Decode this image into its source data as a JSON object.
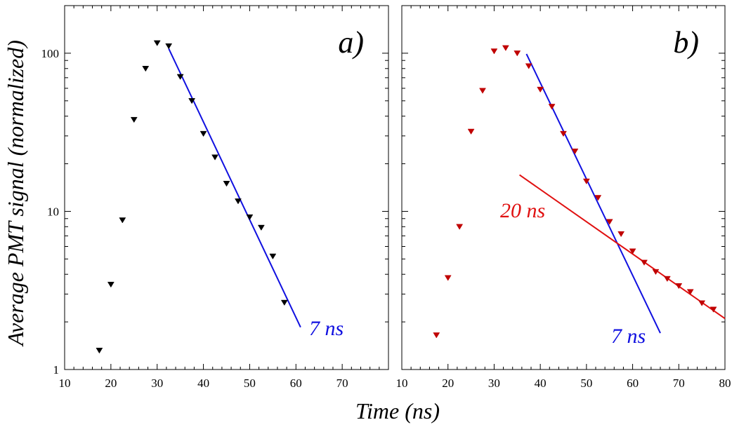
{
  "figure": {
    "ylabel": "Average PMT signal (normalized)",
    "xlabel": "Time (ns)"
  },
  "colors": {
    "black": "#000000",
    "blue": "#1010e0",
    "red": "#e01010",
    "darkred": "#c00000"
  },
  "chart_data": [
    {
      "type": "scatter",
      "panel_label": "a)",
      "xlim": [
        10,
        80
      ],
      "ylim": [
        1,
        200
      ],
      "yscale": "log",
      "x_ticks": [
        "10",
        "20",
        "30",
        "40",
        "50",
        "60",
        "70"
      ],
      "y_ticks": [
        "1",
        "10",
        "100"
      ],
      "series": [
        {
          "marker": "triangle-down",
          "color": "#000000",
          "x": [
            17.5,
            20,
            22.5,
            25,
            27.5,
            30,
            32.5,
            35,
            37.5,
            40,
            42.5,
            45,
            47.5,
            50,
            52.5,
            55,
            57.5
          ],
          "y": [
            1.32,
            3.45,
            8.8,
            38,
            80,
            116,
            111,
            71,
            50,
            31,
            22,
            15,
            11.6,
            9.2,
            7.9,
            5.2,
            2.65
          ]
        }
      ],
      "fits": [
        {
          "label": "7 ns",
          "color": "#1010e0",
          "x": [
            32.5,
            61
          ],
          "y": [
            107,
            1.85
          ]
        }
      ]
    },
    {
      "type": "scatter",
      "panel_label": "b)",
      "xlim": [
        10,
        80
      ],
      "ylim": [
        1,
        200
      ],
      "yscale": "log",
      "x_ticks": [
        "10",
        "20",
        "30",
        "40",
        "50",
        "60",
        "70",
        "80"
      ],
      "y_ticks": [
        "1",
        "10",
        "100"
      ],
      "series": [
        {
          "marker": "triangle-down",
          "color": "#c00000",
          "x": [
            17.5,
            20,
            22.5,
            25,
            27.5,
            30,
            32.5,
            35,
            37.5,
            40,
            42.5,
            45,
            47.5,
            50,
            52.5,
            55,
            57.5,
            60,
            62.5,
            65,
            67.5,
            70,
            72.5,
            75,
            77.5
          ],
          "y": [
            1.65,
            3.8,
            8.0,
            32,
            58,
            103,
            108,
            100,
            83,
            59,
            46,
            31,
            24,
            15.5,
            12.2,
            8.6,
            7.2,
            5.6,
            4.75,
            4.15,
            3.75,
            3.38,
            3.1,
            2.63,
            2.4
          ]
        }
      ],
      "fits": [
        {
          "label": "7 ns",
          "color": "#1010e0",
          "x": [
            37,
            66
          ],
          "y": [
            99,
            1.7
          ]
        },
        {
          "label": "20 ns",
          "color": "#e01010",
          "x": [
            35.5,
            80
          ],
          "y": [
            17,
            2.1
          ]
        }
      ]
    }
  ]
}
